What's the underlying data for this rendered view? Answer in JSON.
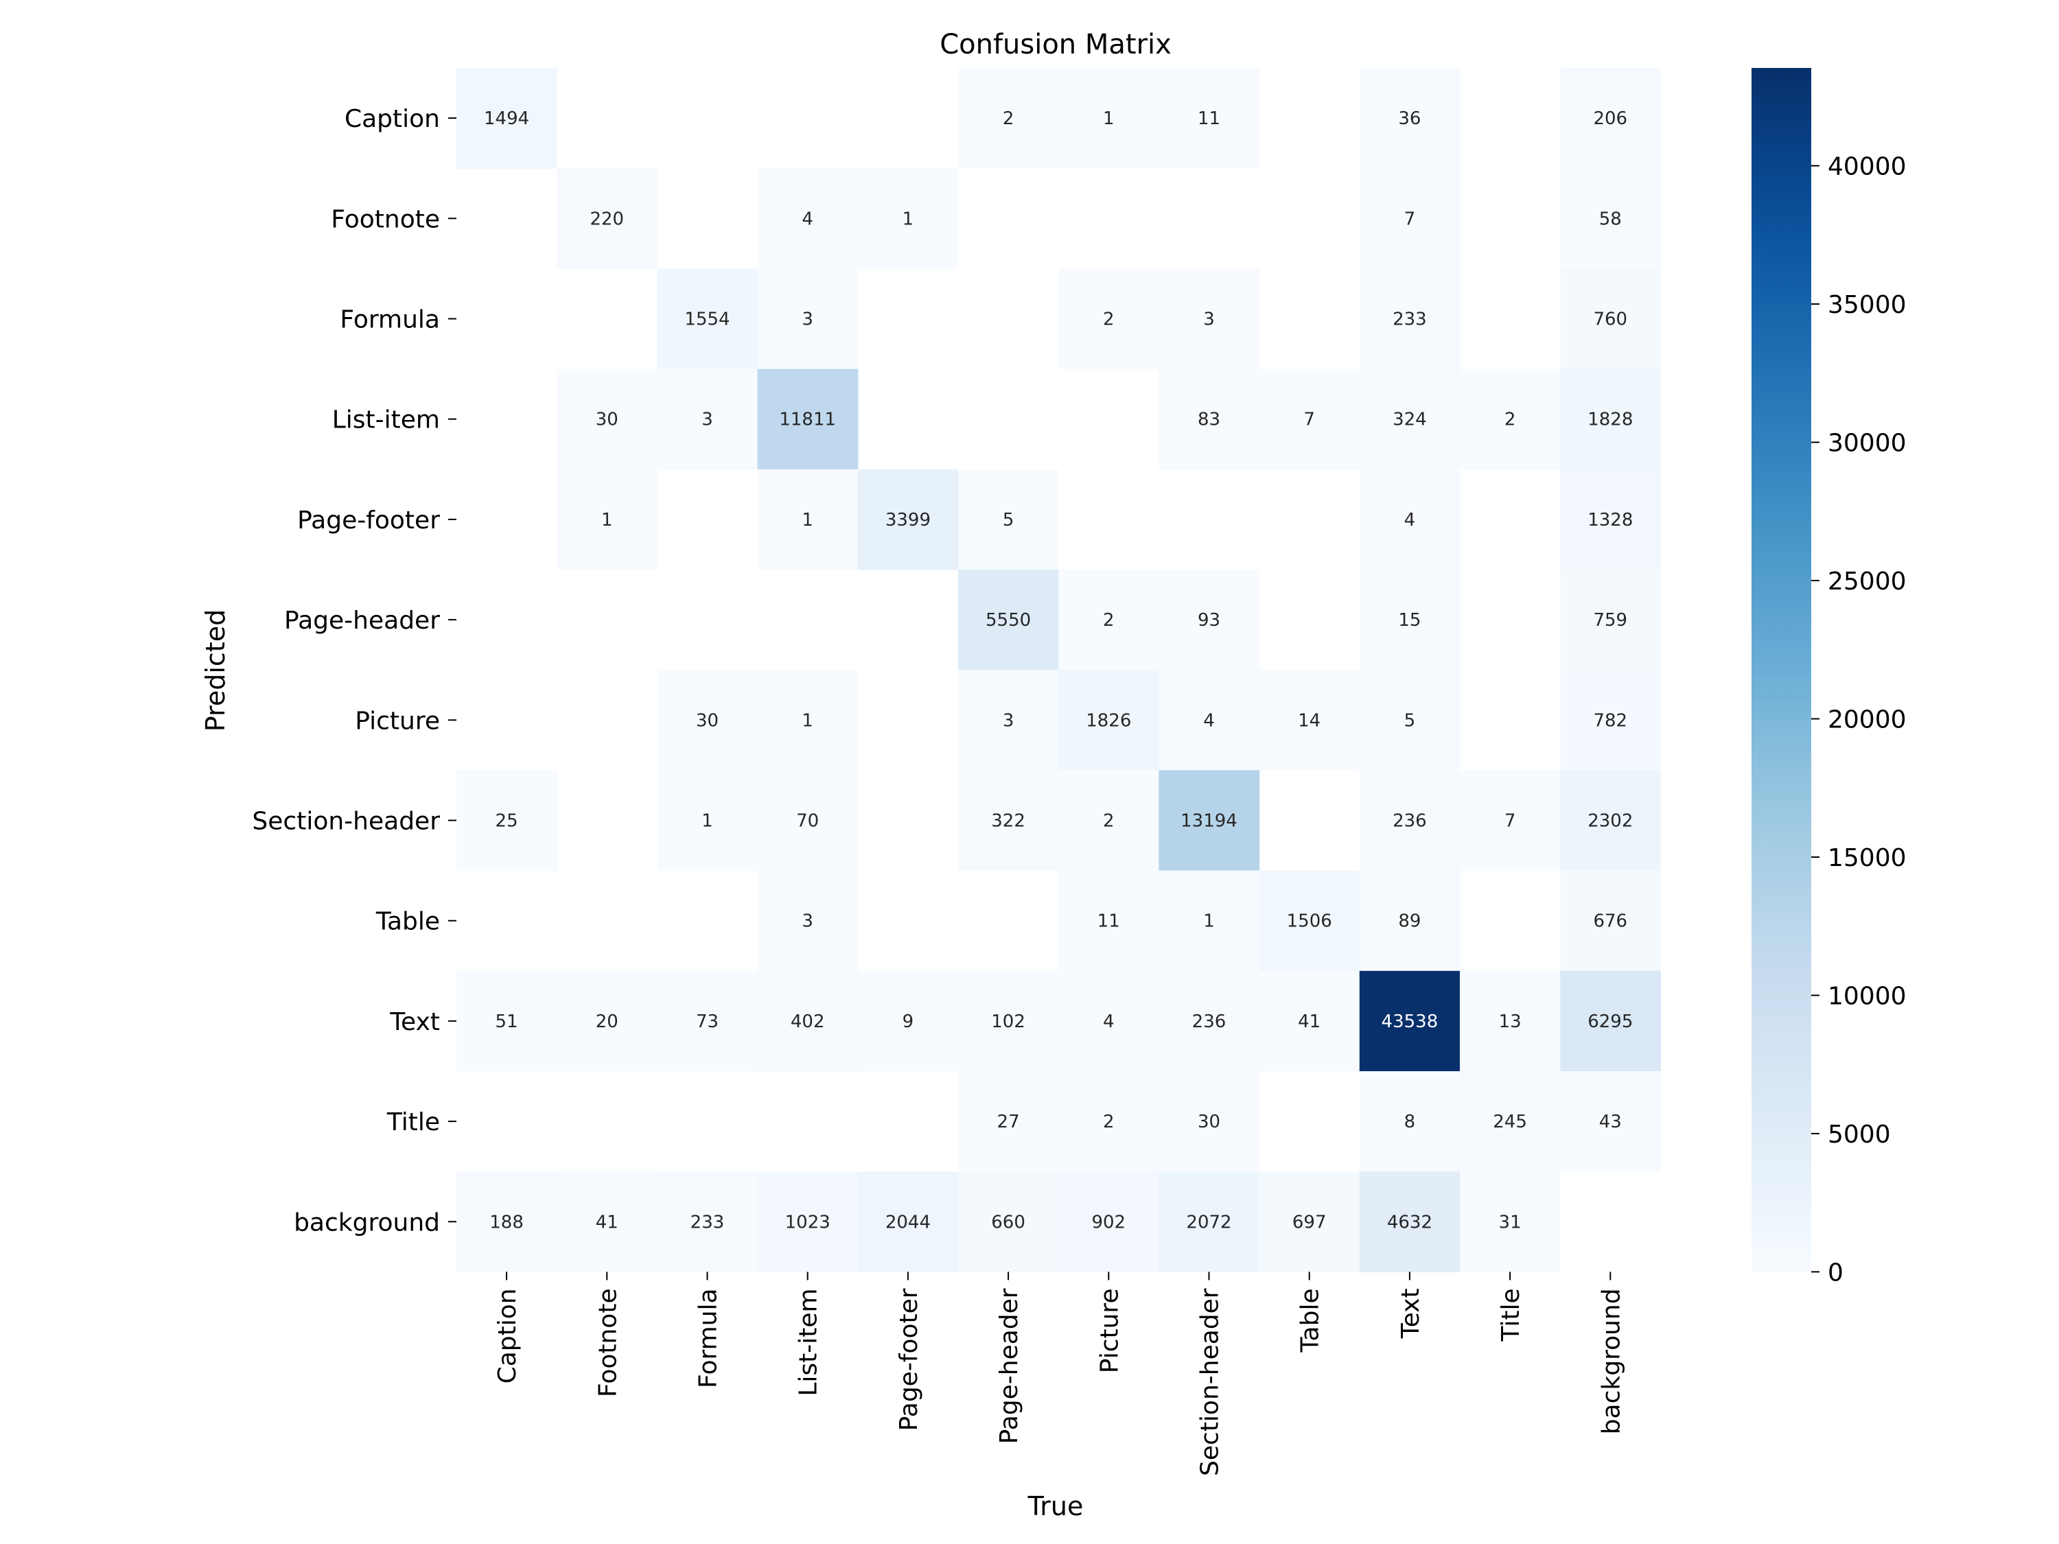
{
  "chart_data": {
    "type": "heatmap",
    "title": "Confusion Matrix",
    "xlabel": "True",
    "ylabel": "Predicted",
    "x_categories": [
      "Caption",
      "Footnote",
      "Formula",
      "List-item",
      "Page-footer",
      "Page-header",
      "Picture",
      "Section-header",
      "Table",
      "Text",
      "Title",
      "background"
    ],
    "y_categories": [
      "Caption",
      "Footnote",
      "Formula",
      "List-item",
      "Page-footer",
      "Page-header",
      "Picture",
      "Section-header",
      "Table",
      "Text",
      "Title",
      "background"
    ],
    "matrix": [
      [
        1494,
        null,
        null,
        null,
        null,
        2,
        1,
        11,
        null,
        36,
        null,
        206
      ],
      [
        null,
        220,
        null,
        4,
        1,
        null,
        null,
        null,
        null,
        7,
        null,
        58
      ],
      [
        null,
        null,
        1554,
        3,
        null,
        null,
        2,
        3,
        null,
        233,
        null,
        760
      ],
      [
        null,
        30,
        3,
        11811,
        null,
        null,
        null,
        83,
        7,
        324,
        2,
        1828
      ],
      [
        null,
        1,
        null,
        1,
        3399,
        5,
        null,
        null,
        null,
        4,
        null,
        1328
      ],
      [
        null,
        null,
        null,
        null,
        null,
        5550,
        2,
        93,
        null,
        15,
        null,
        759
      ],
      [
        null,
        null,
        30,
        1,
        null,
        3,
        1826,
        4,
        14,
        5,
        null,
        782
      ],
      [
        25,
        null,
        1,
        70,
        null,
        322,
        2,
        13194,
        null,
        236,
        7,
        2302
      ],
      [
        null,
        null,
        null,
        3,
        null,
        null,
        11,
        1,
        1506,
        89,
        null,
        676
      ],
      [
        51,
        20,
        73,
        402,
        9,
        102,
        4,
        236,
        41,
        43538,
        13,
        6295
      ],
      [
        null,
        null,
        null,
        null,
        null,
        27,
        2,
        30,
        null,
        8,
        245,
        43
      ],
      [
        188,
        41,
        233,
        1023,
        2044,
        660,
        902,
        2072,
        697,
        4632,
        31,
        null
      ]
    ],
    "colorscale": "Blues",
    "vmin": 0,
    "vmax": 43538,
    "colorbar_ticks": [
      0,
      5000,
      10000,
      15000,
      20000,
      25000,
      30000,
      35000,
      40000
    ],
    "empty_cells": "blank",
    "grid": false
  }
}
